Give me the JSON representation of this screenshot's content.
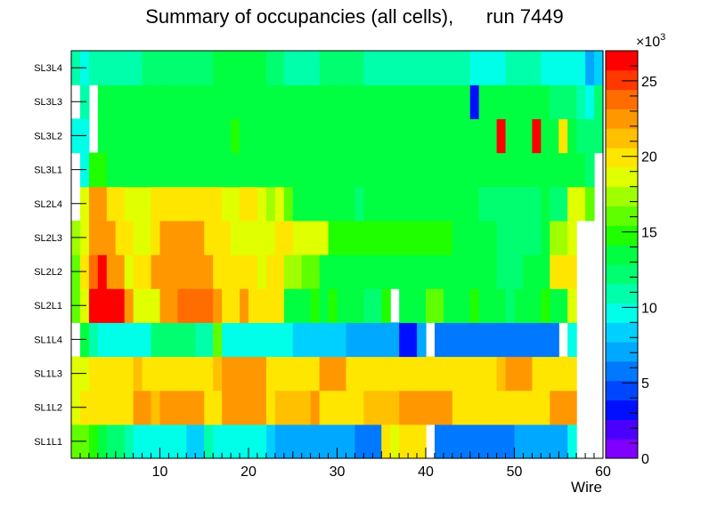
{
  "chart_data": {
    "type": "heatmap",
    "title": "Summary of occupancies (all cells),      run 7449",
    "xlabel": "Wire",
    "ylabel": "",
    "xlim": [
      0,
      60
    ],
    "zlim": [
      0,
      27000
    ],
    "x_ticks": [
      10,
      20,
      30,
      40,
      50,
      60
    ],
    "z_ticks": [
      0,
      5,
      10,
      15,
      20,
      25
    ],
    "z_exponent_label": "×10",
    "z_exponent_power": "3",
    "rows": [
      {
        "label": "SL1L1",
        "values": [
          16,
          16,
          15,
          14,
          12,
          12,
          11,
          10,
          10,
          10,
          10,
          10,
          10,
          8,
          8,
          11,
          9,
          9,
          9,
          9,
          9,
          9,
          8,
          7,
          7,
          7,
          7,
          7,
          7,
          7,
          7,
          7,
          6,
          6,
          6,
          20,
          19,
          20,
          20,
          20,
          null,
          6,
          6,
          6,
          6,
          6,
          6,
          6,
          6,
          6,
          7,
          7,
          7,
          7,
          7,
          7,
          10,
          null,
          null,
          null
        ]
      },
      {
        "label": "SL1L2",
        "values": [
          19,
          20,
          20,
          20,
          20,
          20,
          20,
          22,
          22,
          21,
          22,
          22,
          22,
          22,
          22,
          20,
          20,
          22,
          22,
          22,
          22,
          22,
          20,
          21,
          21,
          21,
          21,
          22,
          20,
          20,
          20,
          20,
          20,
          21,
          21,
          21,
          21,
          22,
          22,
          22,
          22,
          22,
          22,
          20,
          20,
          20,
          20,
          20,
          20,
          20,
          20,
          20,
          20,
          20,
          22,
          22,
          22,
          null,
          null,
          null
        ]
      },
      {
        "label": "SL1L3",
        "values": [
          19,
          19,
          20,
          20,
          20,
          20,
          20,
          21,
          20,
          20,
          20,
          20,
          20,
          20,
          20,
          20,
          21,
          22,
          22,
          22,
          22,
          22,
          20,
          20,
          20,
          20,
          20,
          20,
          22,
          22,
          22,
          20,
          20,
          20,
          20,
          20,
          20,
          20,
          20,
          20,
          20,
          20,
          20,
          20,
          20,
          20,
          20,
          20,
          21,
          22,
          22,
          22,
          20,
          20,
          20,
          20,
          20,
          null,
          null,
          null
        ]
      },
      {
        "label": "SL1L4",
        "values": [
          null,
          13,
          11,
          9,
          9,
          9,
          9,
          10,
          10,
          12,
          12,
          12,
          12,
          12,
          11,
          11,
          16,
          9,
          9,
          9,
          9,
          9,
          9,
          9,
          9,
          8,
          8,
          8,
          8,
          8,
          8,
          7,
          7,
          7,
          7,
          7,
          7,
          3,
          3,
          7,
          null,
          6,
          6,
          6,
          6,
          6,
          6,
          6,
          6,
          6,
          6,
          6,
          6,
          6,
          6,
          null,
          9,
          null,
          null,
          null
        ]
      },
      {
        "label": "SL2L1",
        "values": [
          16,
          18,
          27,
          27,
          26,
          26,
          22,
          19,
          19,
          19,
          22,
          22,
          24,
          24,
          24,
          24,
          22,
          20,
          20,
          22,
          20,
          20,
          20,
          20,
          14,
          14,
          14,
          15,
          14,
          15,
          14,
          14,
          14,
          12,
          12,
          15,
          null,
          14,
          14,
          14,
          16,
          16,
          14,
          14,
          14,
          15,
          13,
          14,
          13,
          12,
          13,
          13,
          14,
          15,
          14,
          14,
          18,
          null,
          null,
          null
        ]
      },
      {
        "label": "SL2L2",
        "values": [
          16,
          20,
          24,
          26,
          22,
          22,
          18,
          20,
          20,
          22,
          22,
          22,
          22,
          22,
          22,
          22,
          20,
          20,
          20,
          20,
          20,
          18,
          20,
          20,
          17,
          17,
          16,
          16,
          14,
          14,
          14,
          14,
          14,
          14,
          14,
          14,
          14,
          14,
          14,
          14,
          14,
          14,
          14,
          14,
          14,
          14,
          14,
          14,
          12,
          12,
          12,
          14,
          14,
          14,
          20,
          20,
          20,
          null,
          null,
          null
        ]
      },
      {
        "label": "SL2L3",
        "values": [
          17,
          19,
          22,
          22,
          22,
          20,
          20,
          19,
          18,
          20,
          22,
          22,
          22,
          22,
          22,
          20,
          20,
          20,
          19,
          19,
          19,
          19,
          19,
          20,
          20,
          19,
          19,
          19,
          19,
          15,
          15,
          15,
          15,
          15,
          15,
          15,
          15,
          15,
          15,
          15,
          15,
          15,
          15,
          14,
          14,
          14,
          14,
          14,
          12,
          12,
          12,
          12,
          12,
          14,
          17,
          17,
          18,
          null,
          null,
          null
        ]
      },
      {
        "label": "SL2L4",
        "values": [
          null,
          19,
          22,
          22,
          20,
          20,
          19,
          19,
          18,
          20,
          20,
          20,
          20,
          20,
          20,
          20,
          20,
          19,
          19,
          20,
          20,
          19,
          17,
          19,
          16,
          14,
          14,
          14,
          14,
          14,
          14,
          14,
          12,
          14,
          14,
          14,
          14,
          14,
          14,
          14,
          14,
          14,
          14,
          14,
          14,
          14,
          12,
          12,
          12,
          12,
          12,
          12,
          12,
          13,
          12,
          12,
          18,
          18,
          16,
          null
        ]
      },
      {
        "label": "SL3L1",
        "values": [
          null,
          10,
          15,
          15,
          14,
          14,
          14,
          14,
          14,
          14,
          14,
          14,
          14,
          14,
          14,
          14,
          14,
          14,
          14,
          14,
          14,
          14,
          14,
          14,
          14,
          14,
          14,
          14,
          14,
          14,
          14,
          14,
          14,
          14,
          14,
          14,
          14,
          14,
          14,
          14,
          14,
          14,
          14,
          14,
          14,
          14,
          14,
          14,
          14,
          14,
          14,
          14,
          14,
          14,
          14,
          14,
          14,
          14,
          12,
          null
        ]
      },
      {
        "label": "SL3L2",
        "values": [
          9,
          9,
          null,
          13,
          13,
          13,
          14,
          14,
          14,
          14,
          14,
          14,
          14,
          14,
          14,
          14,
          14,
          14,
          15,
          14,
          14,
          14,
          14,
          14,
          14,
          14,
          14,
          14,
          14,
          14,
          14,
          14,
          14,
          14,
          14,
          14,
          14,
          14,
          14,
          14,
          14,
          14,
          14,
          14,
          14,
          14,
          14,
          14,
          27,
          14,
          14,
          14,
          27,
          14,
          14,
          20,
          14,
          12,
          12,
          12
        ]
      },
      {
        "label": "SL3L3",
        "values": [
          null,
          11,
          null,
          14,
          14,
          14,
          14,
          14,
          14,
          14,
          14,
          14,
          14,
          14,
          14,
          14,
          14,
          14,
          14,
          14,
          14,
          14,
          14,
          14,
          14,
          14,
          14,
          14,
          14,
          14,
          14,
          14,
          14,
          14,
          14,
          14,
          14,
          14,
          14,
          14,
          14,
          14,
          14,
          14,
          14,
          3,
          13,
          13,
          13,
          13,
          13,
          13,
          13,
          13,
          12,
          12,
          12,
          11,
          10,
          12
        ]
      },
      {
        "label": "SL3L4",
        "values": [
          11,
          9,
          11,
          11,
          11,
          11,
          11,
          11,
          12,
          12,
          12,
          12,
          12,
          12,
          12,
          12,
          13,
          13,
          13,
          13,
          13,
          13,
          12,
          12,
          11,
          11,
          11,
          11,
          12,
          12,
          12,
          12,
          12,
          11,
          11,
          11,
          11,
          11,
          11,
          11,
          11,
          11,
          11,
          11,
          11,
          9,
          9,
          9,
          9,
          11,
          11,
          11,
          11,
          9,
          9,
          9,
          9,
          9,
          7,
          8
        ]
      }
    ]
  }
}
